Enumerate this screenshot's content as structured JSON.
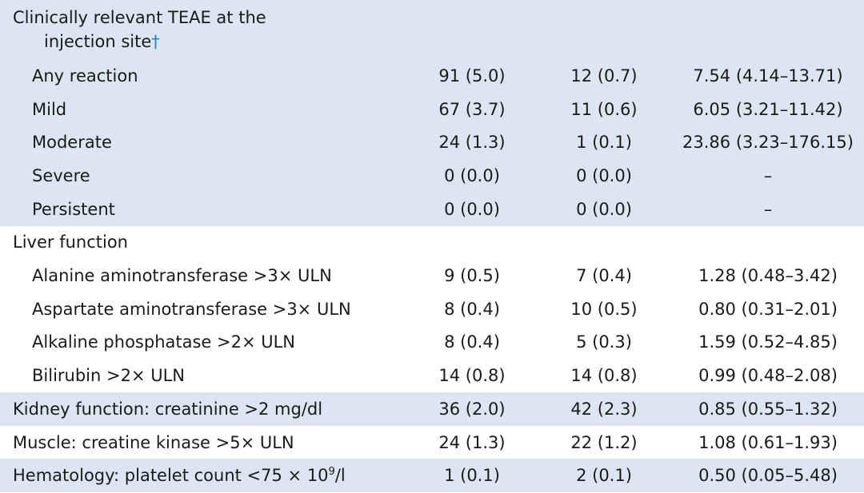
{
  "sections": [
    {
      "title_lines": [
        "Clinically relevant TEAE at the",
        "injection site"
      ],
      "title_marker": "†",
      "rows": [
        {
          "label": "Any reaction",
          "cells": [
            "91 (5.0)",
            "12 (0.7)",
            "7.54 (4.14–13.71)"
          ]
        },
        {
          "label": "Mild",
          "cells": [
            "67 (3.7)",
            "11 (0.6)",
            "6.05 (3.21–11.42)"
          ]
        },
        {
          "label": "Moderate",
          "cells": [
            "24 (1.3)",
            "1 (0.1)",
            "23.86 (3.23–176.15)"
          ]
        },
        {
          "label": "Severe",
          "cells": [
            "0 (0.0)",
            "0 (0.0)",
            "–"
          ]
        },
        {
          "label": "Persistent",
          "cells": [
            "0 (0.0)",
            "0 (0.0)",
            "–"
          ]
        }
      ]
    },
    {
      "title_lines": [
        "Liver function"
      ],
      "rows": [
        {
          "label": "Alanine aminotransferase >3× ULN",
          "cells": [
            "9 (0.5)",
            "7 (0.4)",
            "1.28 (0.48–3.42)"
          ]
        },
        {
          "label": "Aspartate aminotransferase >3× ULN",
          "cells": [
            "8 (0.4)",
            "10 (0.5)",
            "0.80 (0.31–2.01)"
          ]
        },
        {
          "label": "Alkaline phosphatase >2× ULN",
          "cells": [
            "8 (0.4)",
            "5 (0.3)",
            "1.59 (0.52–4.85)"
          ]
        },
        {
          "label": "Bilirubin >2× ULN",
          "cells": [
            "14 (0.8)",
            "14 (0.8)",
            "0.99 (0.48–2.08)"
          ]
        }
      ]
    },
    {
      "title_lines": [
        "Kidney function: creatinine >2 mg/dl"
      ],
      "cells": [
        "36 (2.0)",
        "42 (2.3)",
        "0.85 (0.55–1.32)"
      ],
      "rows": []
    },
    {
      "title_lines": [
        "Muscle: creatine kinase >5× ULN"
      ],
      "cells": [
        "24 (1.3)",
        "22 (1.2)",
        "1.08 (0.61–1.93)"
      ],
      "rows": []
    },
    {
      "title_lines": [
        "Hematology: platelet count <75 × 10"
      ],
      "title_sup": "9",
      "title_after": "/l",
      "cells": [
        "1 (0.1)",
        "2 (0.1)",
        "0.50 (0.05–5.48)"
      ],
      "rows": []
    }
  ]
}
